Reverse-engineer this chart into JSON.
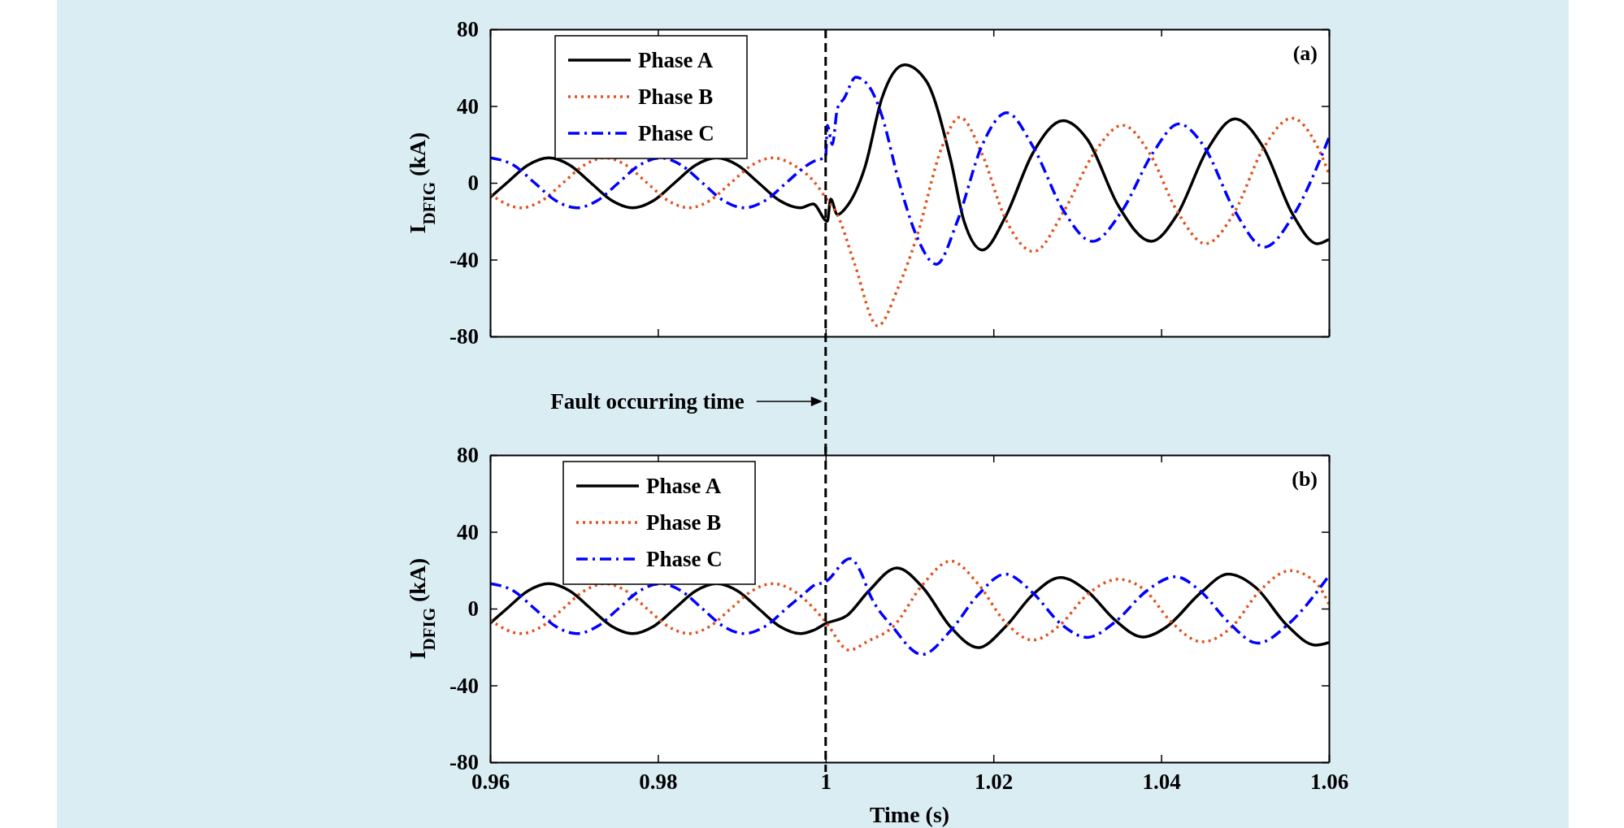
{
  "chart_data": [
    {
      "type": "line",
      "ylabel": "I$_{DFIG}$ (kA)",
      "annotations": [
        "(a)",
        "Fault occurring time"
      ],
      "xlim": [
        0.96,
        1.06
      ],
      "ylim": [
        -80,
        80
      ],
      "xticks": [
        0.96,
        0.98,
        1,
        1.02,
        1.04,
        1.06
      ],
      "yticks": [
        -80,
        -40,
        0,
        40,
        80
      ],
      "tick_labels": "y",
      "legend": "top left",
      "ref_lines": [
        {
          "axis": "x",
          "value": 1,
          "line_style": "dashed",
          "color": "#000000"
        }
      ],
      "series": [
        {
          "name": "Phase A",
          "color": "#000000",
          "line_style": "solid",
          "x": [
            0.96,
            0.962,
            0.9645,
            0.967,
            0.9695,
            0.972,
            0.9745,
            0.977,
            0.9795,
            0.982,
            0.9845,
            0.987,
            0.9895,
            0.992,
            0.9945,
            0.997,
            0.9985,
            1.0002,
            1.0006,
            1.0014,
            1.0024,
            1.0047,
            1.0067,
            1.0094,
            1.012,
            1.0149,
            1.0165,
            1.0187,
            1.0214,
            1.0247,
            1.0283,
            1.0312,
            1.0349,
            1.0388,
            1.0419,
            1.0455,
            1.0488,
            1.0521,
            1.0557,
            1.0586,
            1.06
          ],
          "values": [
            -7.6,
            0,
            9.2,
            13,
            9.2,
            0,
            -9.2,
            -13,
            -9.2,
            0,
            9.2,
            13,
            9.2,
            0,
            -9.2,
            -13,
            -11,
            -20,
            -8.5,
            -16.6,
            -13,
            8.4,
            44,
            61.5,
            53,
            12,
            -20,
            -35,
            -18,
            15.5,
            32.4,
            22.6,
            -12,
            -30.5,
            -16.6,
            17.3,
            33.3,
            19,
            -16.6,
            -31.7,
            -29.4
          ]
        },
        {
          "name": "Phase B",
          "color": "#e2531f",
          "line_style": "dotted",
          "x": [
            0.96,
            0.9637,
            0.9662,
            0.9687,
            0.9712,
            0.9737,
            0.9762,
            0.9787,
            0.9812,
            0.9837,
            0.9862,
            0.9887,
            0.9912,
            0.9937,
            0.9962,
            0.9985,
            1.0,
            1.0014,
            1.0034,
            1.0062,
            1.0087,
            1.0108,
            1.0139,
            1.016,
            1.0186,
            1.0214,
            1.0248,
            1.0284,
            1.032,
            1.0354,
            1.0386,
            1.0419,
            1.0453,
            1.0488,
            1.0521,
            1.0556,
            1.0586,
            1.06
          ],
          "values": [
            -6,
            -13,
            -9.2,
            0,
            9.2,
            13,
            9.2,
            0,
            -9.2,
            -13,
            -9.2,
            0,
            9.2,
            13,
            9.2,
            1.2,
            -7.7,
            -16.6,
            -41.5,
            -74.5,
            -54,
            -29,
            19,
            34.2,
            15.5,
            -18.4,
            -35.8,
            -14.8,
            15.5,
            30,
            15.5,
            -14.8,
            -31.7,
            -14.8,
            17.3,
            33.7,
            19,
            4.8
          ]
        },
        {
          "name": "Phase C",
          "color": "#0000ff",
          "line_style": "dashdot",
          "x": [
            0.96,
            0.9628,
            0.9653,
            0.9678,
            0.9703,
            0.9728,
            0.9753,
            0.9778,
            0.9803,
            0.9828,
            0.9853,
            0.9878,
            0.9903,
            0.9928,
            0.9953,
            0.9978,
            0.9985,
            1.0,
            1.0002,
            1.0008,
            1.0014,
            1.0022,
            1.0036,
            1.0053,
            1.0067,
            1.0087,
            1.0108,
            1.0132,
            1.0157,
            1.0186,
            1.0216,
            1.0247,
            1.0284,
            1.0318,
            1.0353,
            1.039,
            1.0421,
            1.0451,
            1.0488,
            1.0523,
            1.0558,
            1.06
          ],
          "values": [
            13,
            9.2,
            0,
            -9.2,
            -13,
            -9.2,
            0,
            9.2,
            13,
            9.2,
            0,
            -9.2,
            -13,
            -9.2,
            0,
            9.2,
            11,
            13.7,
            30,
            20,
            38.7,
            44,
            55,
            49.4,
            35,
            1.2,
            -27.3,
            -42.4,
            -20,
            19,
            36.5,
            19,
            -14.8,
            -30.5,
            -14.8,
            15.5,
            30.7,
            19,
            -14.8,
            -33.5,
            -16.6,
            23.5
          ]
        }
      ]
    },
    {
      "type": "line",
      "xlabel": "Time (s)",
      "ylabel": "I$_{DFIG}$ (kA)",
      "annotations": [
        "(b)"
      ],
      "xlim": [
        0.96,
        1.06
      ],
      "ylim": [
        -80,
        80
      ],
      "xticks": [
        0.96,
        0.98,
        1,
        1.02,
        1.04,
        1.06
      ],
      "yticks": [
        -80,
        -40,
        0,
        40,
        80
      ],
      "legend": "top left",
      "ref_lines": [
        {
          "axis": "x",
          "value": 1,
          "line_style": "dashed",
          "color": "#000000"
        }
      ],
      "series": [
        {
          "name": "Phase A",
          "color": "#000000",
          "line_style": "solid",
          "x": [
            0.96,
            0.962,
            0.9645,
            0.967,
            0.9695,
            0.972,
            0.9745,
            0.977,
            0.9795,
            0.982,
            0.9845,
            0.987,
            0.9895,
            0.992,
            0.9945,
            0.997,
            0.9985,
            1.0,
            1.0026,
            1.0051,
            1.0085,
            1.0116,
            1.0149,
            1.0182,
            1.0214,
            1.0247,
            1.028,
            1.0312,
            1.0345,
            1.0378,
            1.0406,
            1.0447,
            1.048,
            1.0513,
            1.055,
            1.0584,
            1.06
          ],
          "values": [
            -7.6,
            0,
            9.2,
            13,
            9.2,
            0,
            -9.2,
            -13,
            -9.2,
            0,
            9.2,
            13,
            9.2,
            0,
            -9.2,
            -13,
            -11.4,
            -7.8,
            -3.4,
            9,
            21.2,
            10.9,
            -9.6,
            -20.3,
            -9.6,
            7.3,
            16.2,
            9,
            -6,
            -14.8,
            -9.6,
            8.2,
            18,
            10.9,
            -8.7,
            -19,
            -17.6
          ]
        },
        {
          "name": "Phase B",
          "color": "#e2531f",
          "line_style": "dotted",
          "x": [
            0.96,
            0.9637,
            0.9662,
            0.9687,
            0.9712,
            0.9737,
            0.9762,
            0.9787,
            0.9812,
            0.9837,
            0.9862,
            0.9887,
            0.9912,
            0.9937,
            0.9962,
            0.9985,
            1.0,
            1.0028,
            1.0051,
            1.008,
            1.0116,
            1.0149,
            1.0182,
            1.0214,
            1.0247,
            1.0279,
            1.0312,
            1.0349,
            1.0382,
            1.041,
            1.0449,
            1.0484,
            1.0517,
            1.0554,
            1.0586,
            1.06
          ],
          "values": [
            -6,
            -13,
            -9.2,
            0,
            9.2,
            13,
            9.2,
            0,
            -9.2,
            -13,
            -9.2,
            0,
            9.2,
            13,
            9.2,
            0.5,
            -7,
            -21.6,
            -16.8,
            -9.6,
            12.7,
            24.8,
            12.7,
            -7,
            -16.4,
            -8.7,
            7.3,
            15.3,
            9,
            -6,
            -17.3,
            -9.6,
            9,
            19.8,
            12.7,
            2.3
          ]
        },
        {
          "name": "Phase C",
          "color": "#0000ff",
          "line_style": "dashdot",
          "x": [
            0.96,
            0.9628,
            0.9653,
            0.9678,
            0.9703,
            0.9728,
            0.9753,
            0.9778,
            0.9803,
            0.9828,
            0.9853,
            0.9878,
            0.9903,
            0.9928,
            0.9953,
            0.9978,
            0.9985,
            1.0,
            1.0029,
            1.0043,
            1.0051,
            1.008,
            1.0115,
            1.0149,
            1.0182,
            1.0214,
            1.0247,
            1.028,
            1.0312,
            1.0345,
            1.0382,
            1.0417,
            1.0447,
            1.048,
            1.0515,
            1.055,
            1.06
          ],
          "values": [
            13,
            9.2,
            0,
            -9.2,
            -13,
            -9.2,
            0,
            9.2,
            13,
            9.2,
            0,
            -9.2,
            -13,
            -9.2,
            0,
            9.2,
            11.8,
            14,
            26,
            18,
            9,
            -9.6,
            -23.9,
            -11.4,
            7.3,
            18,
            8.2,
            -7.8,
            -15,
            -7,
            9,
            16.6,
            9,
            -7,
            -18,
            -8.7,
            17.1
          ]
        }
      ]
    }
  ]
}
